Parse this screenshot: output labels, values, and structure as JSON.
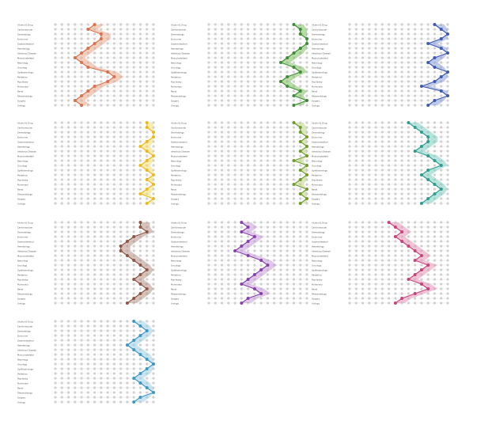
{
  "figure": {
    "rows": [
      "Alcohol & Drug",
      "Cardiovascular",
      "Dermatology",
      "Endocrine",
      "Gastrointestinal",
      "Hematology",
      "Infectious Disease",
      "Musculoskeletal",
      "Neurology",
      "Oncology",
      "Ophthalmology",
      "Pediatrics",
      "Psychiatry",
      "Pulmonary",
      "Renal",
      "Rheumatology",
      "Surgery",
      "Urology"
    ],
    "columns": 16
  },
  "chart_data": [
    {
      "type": "line",
      "color": "#d7714d",
      "fill": "#eaa88c",
      "values": [
        6,
        5,
        7,
        7,
        6,
        5,
        4,
        3,
        4,
        5,
        8,
        9,
        8,
        6,
        5,
        4,
        3,
        4
      ]
    },
    {
      "type": "line",
      "color": "#3f8a35",
      "fill": "#7cbf5e",
      "values": [
        13,
        14,
        14,
        15,
        15,
        14,
        13,
        12,
        11,
        13,
        14,
        12,
        11,
        12,
        14,
        13,
        15,
        13
      ]
    },
    {
      "type": "line",
      "color": "#3f58b0",
      "fill": "#8d9fdb",
      "values": [
        13,
        14,
        15,
        14,
        12,
        14,
        15,
        13,
        12,
        13,
        15,
        14,
        13,
        11,
        14,
        15,
        13,
        12
      ]
    },
    {
      "type": "line",
      "color": "#e9b924",
      "fill": "#f7de6c",
      "values": [
        14,
        14,
        15,
        15,
        14,
        13,
        14,
        15,
        14,
        13,
        14,
        15,
        14,
        15,
        14,
        13,
        15,
        14
      ]
    },
    {
      "type": "line",
      "color": "#6f9a31",
      "fill": "#bcd585",
      "values": [
        13,
        14,
        14,
        15,
        14,
        15,
        14,
        15,
        13,
        15,
        14,
        15,
        14,
        13,
        15,
        14,
        15,
        14
      ]
    },
    {
      "type": "line",
      "color": "#2f9b8e",
      "fill": "#7fcdc2",
      "values": [
        9,
        10,
        11,
        12,
        12,
        11,
        10,
        12,
        13,
        14,
        12,
        11,
        12,
        13,
        14,
        13,
        12,
        11
      ]
    },
    {
      "type": "line",
      "color": "#8c5545",
      "fill": "#b59183",
      "values": [
        13,
        13,
        14,
        12,
        11,
        10,
        10,
        11,
        12,
        13,
        14,
        13,
        12,
        13,
        14,
        13,
        12,
        11
      ]
    },
    {
      "type": "line",
      "color": "#8540a8",
      "fill": "#c59ad8",
      "values": [
        5,
        6,
        5,
        7,
        6,
        5,
        4,
        6,
        8,
        9,
        8,
        7,
        6,
        5,
        7,
        8,
        6,
        5
      ]
    },
    {
      "type": "line",
      "color": "#c4437a",
      "fill": "#e793b7",
      "values": [
        6,
        7,
        8,
        7,
        8,
        9,
        10,
        11,
        10,
        12,
        11,
        10,
        9,
        11,
        12,
        10,
        8,
        7
      ]
    },
    {
      "type": "line",
      "color": "#3f96c2",
      "fill": "#9fd0e8",
      "values": [
        12,
        13,
        14,
        13,
        12,
        11,
        12,
        13,
        14,
        15,
        14,
        13,
        12,
        13,
        14,
        15,
        13,
        12
      ]
    }
  ]
}
